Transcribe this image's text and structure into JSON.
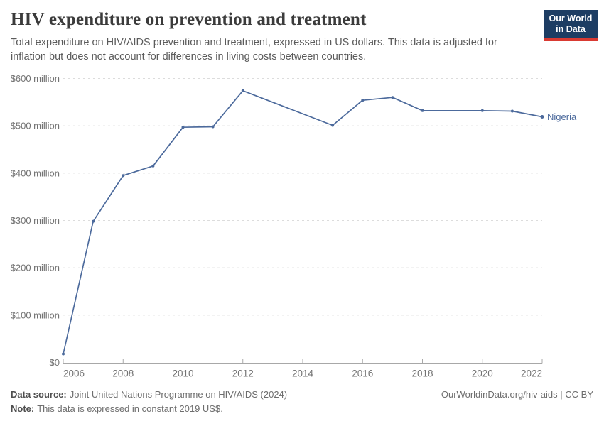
{
  "header": {
    "title": "HIV expenditure on prevention and treatment",
    "subtitle": "Total expenditure on HIV/AIDS prevention and treatment, expressed in US dollars. This data is adjusted for inflation but does not account for differences in living costs between countries.",
    "logo": {
      "line1": "Our World",
      "line2": "in Data"
    }
  },
  "chart_data": {
    "type": "line",
    "title": "HIV expenditure on prevention and treatment",
    "unit": "US$ (millions), constant 2019 US$",
    "x": [
      2006,
      2007,
      2008,
      2009,
      2010,
      2011,
      2012,
      2015,
      2016,
      2017,
      2018,
      2020,
      2021,
      2022
    ],
    "series": [
      {
        "name": "Nigeria",
        "color": "#4C6A9C",
        "values": [
          18,
          298,
          395,
          415,
          497,
          498,
          574,
          501,
          554,
          560,
          532,
          532,
          531,
          519
        ]
      }
    ],
    "xlim": [
      2006,
      2022
    ],
    "ylim": [
      0,
      600
    ],
    "x_ticks": [
      2006,
      2008,
      2010,
      2012,
      2014,
      2016,
      2018,
      2020,
      2022
    ],
    "y_ticks": [
      {
        "value": 0,
        "label": "$0"
      },
      {
        "value": 100,
        "label": "$100 million"
      },
      {
        "value": 200,
        "label": "$200 million"
      },
      {
        "value": 300,
        "label": "$300 million"
      },
      {
        "value": 400,
        "label": "$400 million"
      },
      {
        "value": 500,
        "label": "$500 million"
      },
      {
        "value": 600,
        "label": "$600 million"
      }
    ],
    "grid": "horizontal-dashed",
    "legend": "end-of-line-label"
  },
  "colors": {
    "line": "#4C6A9C",
    "grid": "#dcdcdc",
    "axis": "#a8a8a8",
    "tick_label": "#737373",
    "logo_bg": "#1d3d63",
    "logo_accent": "#d93a32"
  },
  "footer": {
    "datasource_label": "Data source:",
    "datasource_value": "Joint United Nations Programme on HIV/AIDS (2024)",
    "note_label": "Note:",
    "note_value": "This data is expressed in constant 2019 US$.",
    "attribution": "OurWorldinData.org/hiv-aids | CC BY"
  }
}
